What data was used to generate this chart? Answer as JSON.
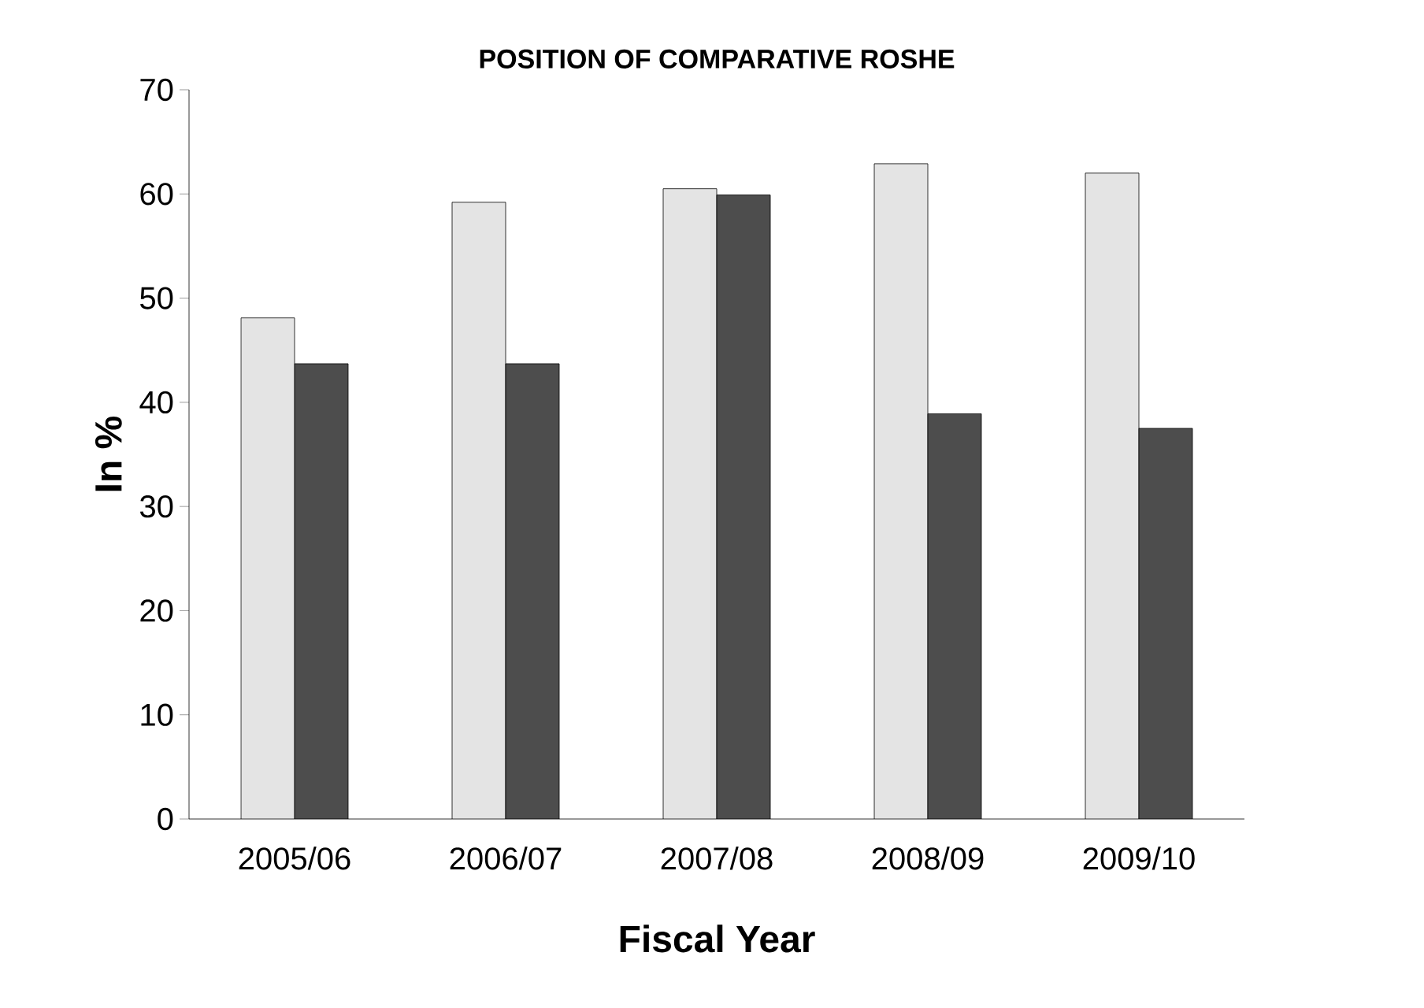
{
  "chart_data": {
    "type": "bar",
    "title": "POSITION OF COMPARATIVE ROSHE",
    "xlabel": "Fiscal Year",
    "ylabel": "In %",
    "categories": [
      "2005/06",
      "2006/07",
      "2007/08",
      "2008/09",
      "2009/10"
    ],
    "series": [
      {
        "color": "#e4e4e4",
        "values": [
          48.1,
          59.2,
          60.5,
          62.9,
          62
        ]
      },
      {
        "color": "#4d4d4d",
        "values": [
          43.7,
          43.7,
          59.9,
          38.9,
          37.5
        ]
      }
    ],
    "ylim": [
      0,
      70
    ],
    "yticks": [
      0,
      10,
      20,
      30,
      40,
      50,
      60,
      70
    ],
    "grid": false
  }
}
